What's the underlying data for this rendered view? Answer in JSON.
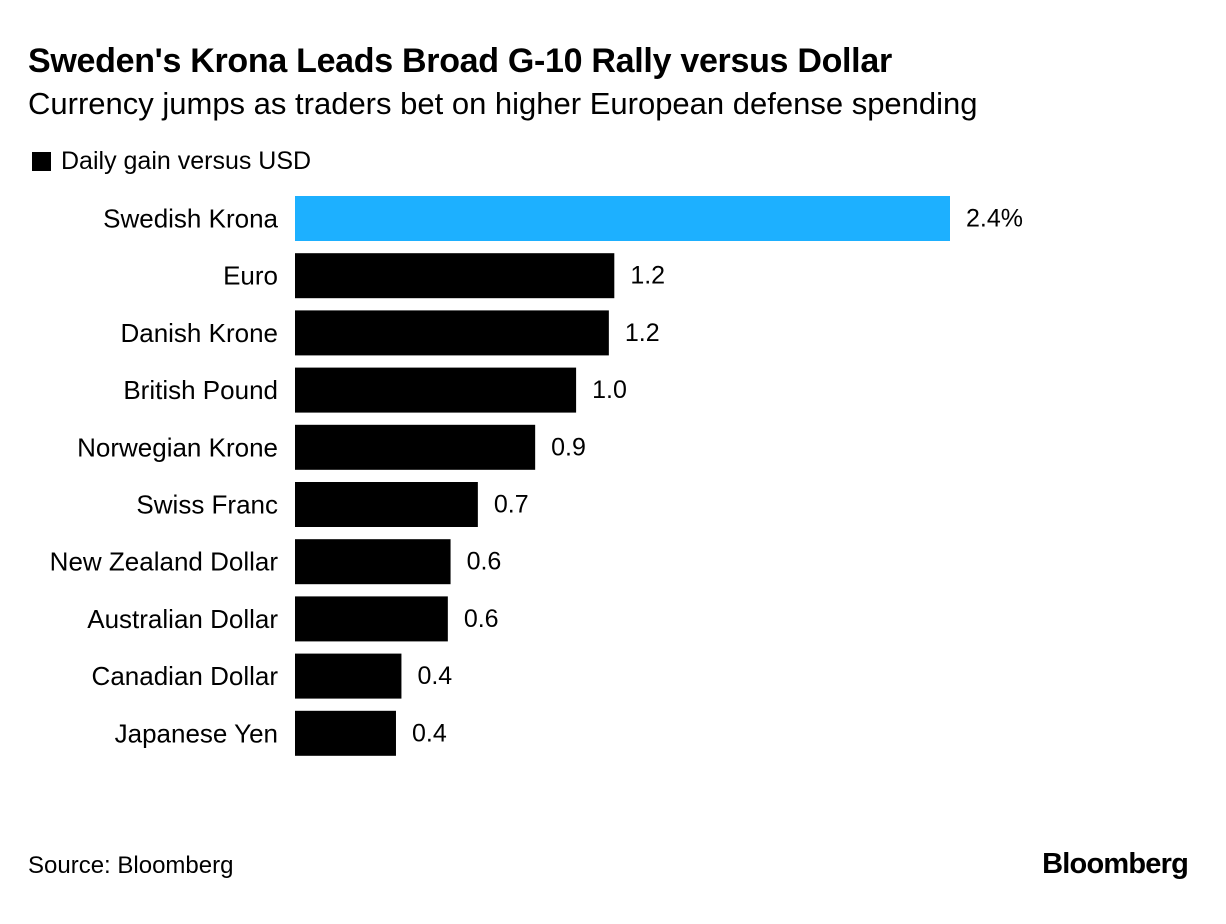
{
  "chart_data": {
    "type": "bar",
    "orientation": "horizontal",
    "title": "Sweden's Krona Leads Broad G-10 Rally versus Dollar",
    "subtitle": "Currency jumps as traders bet on higher European defense spending",
    "legend": "Daily gain versus USD",
    "categories": [
      "Swedish Krona",
      "Euro",
      "Danish Krone",
      "British Pound",
      "Norwegian Krone",
      "Swiss Franc",
      "New Zealand Dollar",
      "Australian Dollar",
      "Canadian Dollar",
      "Japanese Yen"
    ],
    "values": [
      2.4,
      1.17,
      1.15,
      1.03,
      0.88,
      0.67,
      0.57,
      0.56,
      0.39,
      0.37
    ],
    "value_labels": [
      "2.4%",
      "1.2",
      "1.2",
      "1.0",
      "0.9",
      "0.7",
      "0.6",
      "0.6",
      "0.4",
      "0.4"
    ],
    "highlight_index": 0,
    "xlim": [
      0,
      2.4
    ],
    "xlabel": "",
    "ylabel": "",
    "grid": false
  },
  "colors": {
    "highlight": "#1DB0FF",
    "bar": "#000000",
    "text": "#000000",
    "background": "#FFFFFF"
  },
  "footer": {
    "source": "Source: Bloomberg",
    "logo": "Bloomberg"
  }
}
